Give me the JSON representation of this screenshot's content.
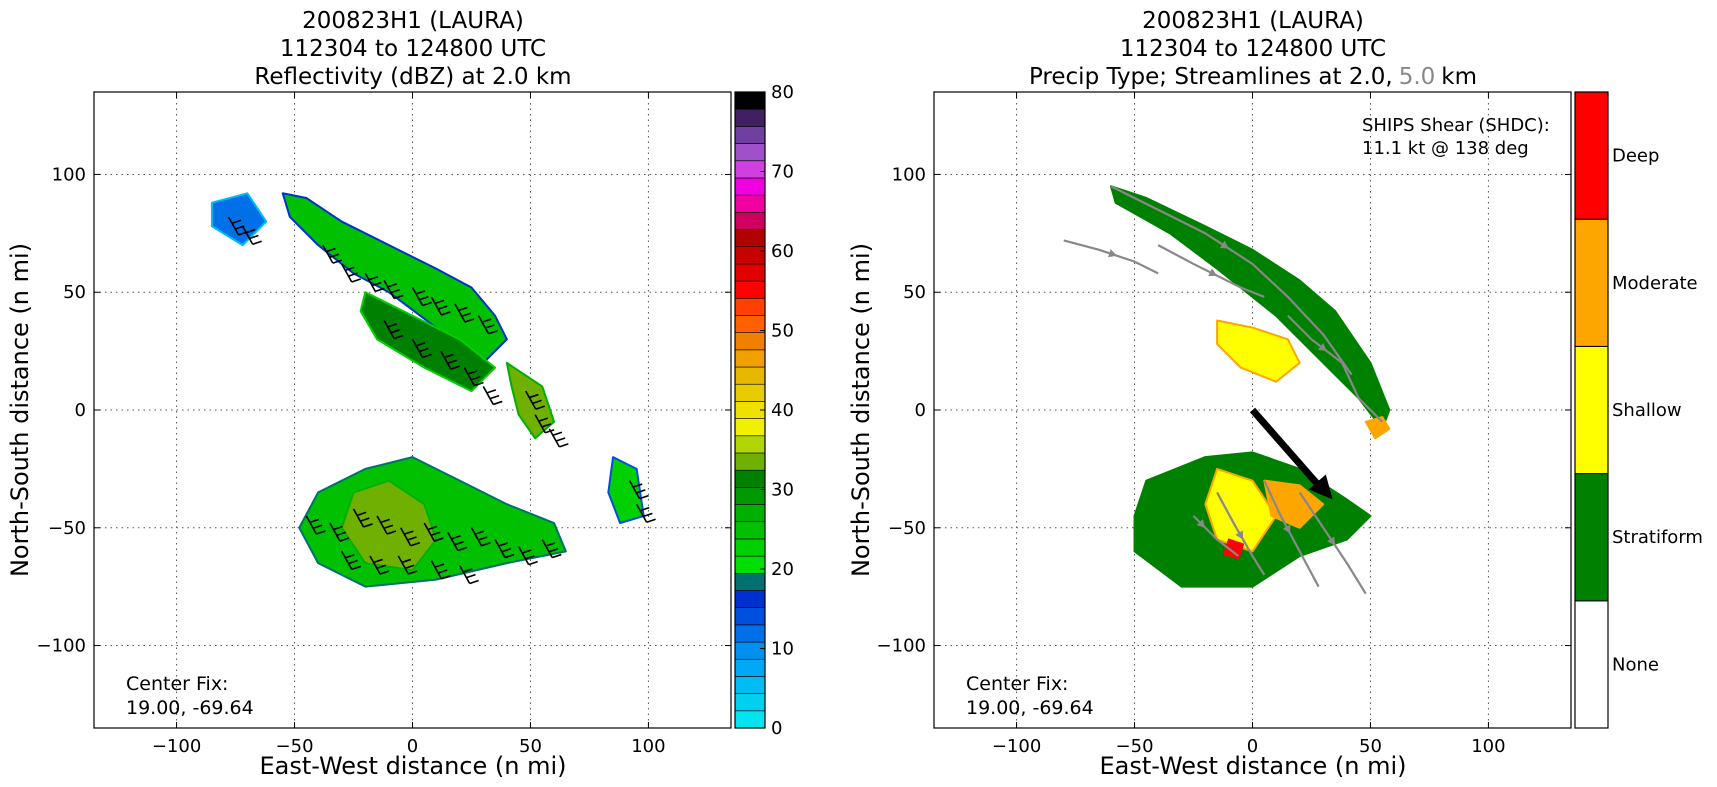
{
  "left_panel": {
    "title_line1": "200823H1 (LAURA)",
    "title_line2": "112304 to 124800 UTC",
    "title_line3": "Reflectivity (dBZ) at 2.0 km",
    "xlabel": "East-West distance (n mi)",
    "ylabel": "North-South distance (n mi)",
    "center_fix_label": "Center Fix:",
    "center_fix_value": "19.00, -69.64"
  },
  "right_panel": {
    "title_line1": "200823H1 (LAURA)",
    "title_line2": "112304 to 124800 UTC",
    "title_line3_a": "Precip Type; Streamlines at 2.0,",
    "title_line3_b": "5.0",
    "title_line3_c": "km",
    "xlabel": "East-West distance (n mi)",
    "ylabel": "North-South distance (n mi)",
    "shear_label": "SHIPS Shear (SHDC):",
    "shear_value": "11.1 kt @ 138 deg",
    "center_fix_label": "Center Fix:",
    "center_fix_value": "19.00, -69.64"
  },
  "reflectivity_colorbar": {
    "ticks": [
      "0",
      "10",
      "20",
      "30",
      "40",
      "50",
      "60",
      "70",
      "80"
    ],
    "colors": [
      "#00e5ee",
      "#00d0f0",
      "#00bcf5",
      "#00a8f5",
      "#0090f0",
      "#0070e8",
      "#0050e0",
      "#0030d0",
      "#007070",
      "#00e000",
      "#00d000",
      "#00c000",
      "#00b000",
      "#009800",
      "#008000",
      "#70b000",
      "#b0d800",
      "#f0f000",
      "#f0e000",
      "#e8cc00",
      "#e8b800",
      "#f0a000",
      "#f08000",
      "#ff6000",
      "#ff4000",
      "#ff0000",
      "#e00000",
      "#c80000",
      "#b00000",
      "#d00060",
      "#f000a0",
      "#f000e0",
      "#d040e0",
      "#a050c8",
      "#7040a0",
      "#402060",
      "#000000"
    ]
  },
  "precip_colorbar": {
    "labels": [
      "None",
      "Stratiform",
      "Shallow",
      "Moderate",
      "Deep"
    ],
    "colors": [
      "#ffffff",
      "#008000",
      "#ffff00",
      "#ffa500",
      "#ff0000"
    ]
  },
  "chart_data": [
    {
      "type": "heatmap",
      "title": "200823H1 (LAURA) 112304 to 124800 UTC Reflectivity (dBZ) at 2.0 km",
      "xlabel": "East-West distance (n mi)",
      "ylabel": "North-South distance (n mi)",
      "xlim": [
        -135,
        135
      ],
      "ylim": [
        -135,
        135
      ],
      "xticks": [
        -100,
        -50,
        0,
        50,
        100
      ],
      "yticks": [
        -100,
        -50,
        0,
        50,
        100
      ],
      "grid": true,
      "colorbar_range": [
        0,
        80
      ],
      "echo_regions": [
        {
          "points": [
            [
              -55,
              92
            ],
            [
              -45,
              90
            ],
            [
              -30,
              80
            ],
            [
              -10,
              70
            ],
            [
              10,
              60
            ],
            [
              25,
              52
            ],
            [
              35,
              40
            ],
            [
              40,
              30
            ],
            [
              30,
              20
            ],
            [
              10,
              35
            ],
            [
              -10,
              50
            ],
            [
              -25,
              58
            ],
            [
              -40,
              70
            ],
            [
              -52,
              82
            ]
          ],
          "dbz": 24
        },
        {
          "points": [
            [
              -20,
              50
            ],
            [
              0,
              40
            ],
            [
              20,
              30
            ],
            [
              35,
              18
            ],
            [
              25,
              8
            ],
            [
              5,
              18
            ],
            [
              -15,
              30
            ],
            [
              -22,
              42
            ]
          ],
          "dbz": 30
        },
        {
          "points": [
            [
              40,
              20
            ],
            [
              55,
              10
            ],
            [
              60,
              -5
            ],
            [
              52,
              -12
            ],
            [
              45,
              -2
            ],
            [
              42,
              10
            ]
          ],
          "dbz": 34
        },
        {
          "points": [
            [
              -40,
              -35
            ],
            [
              -20,
              -25
            ],
            [
              0,
              -20
            ],
            [
              20,
              -30
            ],
            [
              40,
              -40
            ],
            [
              60,
              -48
            ],
            [
              65,
              -60
            ],
            [
              40,
              -65
            ],
            [
              10,
              -72
            ],
            [
              -20,
              -75
            ],
            [
              -40,
              -65
            ],
            [
              -48,
              -50
            ]
          ],
          "dbz": 25
        },
        {
          "points": [
            [
              -25,
              -35
            ],
            [
              -10,
              -30
            ],
            [
              5,
              -40
            ],
            [
              10,
              -55
            ],
            [
              0,
              -68
            ],
            [
              -20,
              -65
            ],
            [
              -30,
              -50
            ]
          ],
          "dbz": 34
        },
        {
          "points": [
            [
              85,
              -20
            ],
            [
              95,
              -25
            ],
            [
              98,
              -45
            ],
            [
              88,
              -48
            ],
            [
              83,
              -35
            ]
          ],
          "dbz": 22
        },
        {
          "points": [
            [
              -85,
              88
            ],
            [
              -70,
              92
            ],
            [
              -62,
              80
            ],
            [
              -72,
              70
            ],
            [
              -85,
              78
            ]
          ],
          "dbz": 12
        }
      ],
      "center_fix": [
        19.0,
        -69.64
      ]
    },
    {
      "type": "heatmap",
      "title": "200823H1 (LAURA) 112304 to 124800 UTC Precip Type; Streamlines at 2.0, 5.0 km",
      "xlabel": "East-West distance (n mi)",
      "ylabel": "North-South distance (n mi)",
      "xlim": [
        -135,
        135
      ],
      "ylim": [
        -135,
        135
      ],
      "xticks": [
        -100,
        -50,
        0,
        50,
        100
      ],
      "yticks": [
        -100,
        -50,
        0,
        50,
        100
      ],
      "grid": true,
      "categories": [
        "None",
        "Stratiform",
        "Shallow",
        "Moderate",
        "Deep"
      ],
      "precip_regions": [
        {
          "points": [
            [
              -60,
              95
            ],
            [
              -45,
              90
            ],
            [
              -20,
              78
            ],
            [
              0,
              68
            ],
            [
              20,
              55
            ],
            [
              35,
              42
            ],
            [
              50,
              20
            ],
            [
              58,
              0
            ],
            [
              55,
              -8
            ],
            [
              45,
              5
            ],
            [
              30,
              20
            ],
            [
              10,
              40
            ],
            [
              -15,
              60
            ],
            [
              -35,
              75
            ],
            [
              -58,
              88
            ]
          ],
          "category": "Stratiform"
        },
        {
          "points": [
            [
              -15,
              38
            ],
            [
              0,
              35
            ],
            [
              15,
              30
            ],
            [
              20,
              20
            ],
            [
              10,
              12
            ],
            [
              -5,
              18
            ],
            [
              -15,
              28
            ]
          ],
          "category": "Shallow"
        },
        {
          "points": [
            [
              -45,
              -30
            ],
            [
              -20,
              -20
            ],
            [
              0,
              -18
            ],
            [
              20,
              -25
            ],
            [
              40,
              -38
            ],
            [
              50,
              -45
            ],
            [
              40,
              -55
            ],
            [
              20,
              -62
            ],
            [
              0,
              -75
            ],
            [
              -30,
              -75
            ],
            [
              -50,
              -60
            ],
            [
              -50,
              -45
            ]
          ],
          "category": "Stratiform"
        },
        {
          "points": [
            [
              -15,
              -25
            ],
            [
              0,
              -30
            ],
            [
              10,
              -45
            ],
            [
              0,
              -60
            ],
            [
              -15,
              -55
            ],
            [
              -20,
              -40
            ]
          ],
          "category": "Shallow"
        },
        {
          "points": [
            [
              5,
              -30
            ],
            [
              20,
              -32
            ],
            [
              30,
              -40
            ],
            [
              20,
              -50
            ],
            [
              8,
              -45
            ]
          ],
          "category": "Moderate"
        },
        {
          "points": [
            [
              48,
              -5
            ],
            [
              55,
              -3
            ],
            [
              58,
              -8
            ],
            [
              52,
              -12
            ]
          ],
          "category": "Moderate"
        },
        {
          "points": [
            [
              -10,
              -55
            ],
            [
              -4,
              -57
            ],
            [
              -6,
              -63
            ],
            [
              -12,
              -61
            ]
          ],
          "category": "Deep"
        }
      ],
      "shear_vector": {
        "speed_kt": 11.1,
        "direction_deg": 138
      },
      "center_fix": [
        19.0,
        -69.64
      ]
    }
  ]
}
